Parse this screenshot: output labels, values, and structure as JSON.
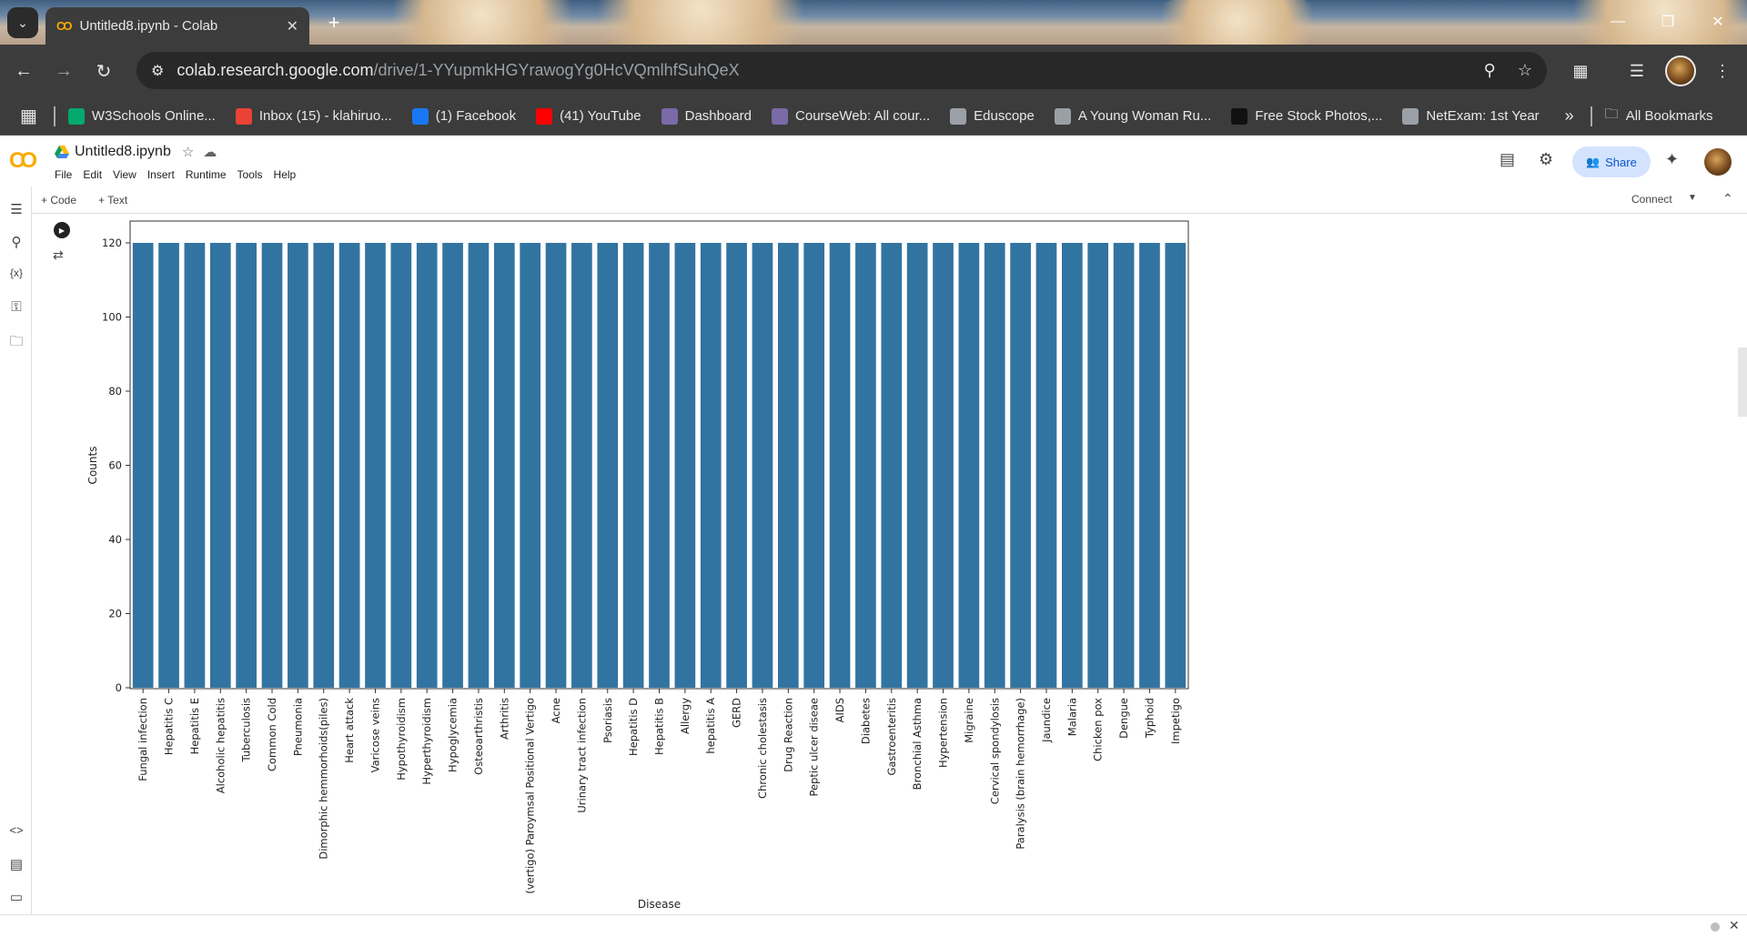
{
  "browser": {
    "tab_title": "Untitled8.ipynb - Colab",
    "url_host": "colab.research.google.com",
    "url_path": "/drive/1-YYupmkHGYrawogYg0HcVQmlhfSuhQeX",
    "bookmarks": [
      {
        "label": "W3Schools Online...",
        "icon": "w3schools-icon",
        "color": "#04aa6d"
      },
      {
        "label": "Inbox (15) - klahiruo...",
        "icon": "gmail-icon",
        "color": "#ea4335"
      },
      {
        "label": "(1) Facebook",
        "icon": "facebook-icon",
        "color": "#1877f2"
      },
      {
        "label": "(41) YouTube",
        "icon": "youtube-icon",
        "color": "#ff0000"
      },
      {
        "label": "Dashboard",
        "icon": "university-icon",
        "color": "#7b6aa8"
      },
      {
        "label": "CourseWeb: All cour...",
        "icon": "university-icon",
        "color": "#7b6aa8"
      },
      {
        "label": "Eduscope",
        "icon": "globe-icon",
        "color": "#9aa0a6"
      },
      {
        "label": "A Young Woman Ru...",
        "icon": "globe-icon",
        "color": "#9aa0a6"
      },
      {
        "label": "Free Stock Photos,...",
        "icon": "pexels-icon",
        "color": "#111111"
      },
      {
        "label": "NetExam: 1st Year",
        "icon": "globe-icon",
        "color": "#9aa0a6"
      }
    ],
    "all_bookmarks": "All Bookmarks"
  },
  "colab": {
    "notebook_title": "Untitled8.ipynb",
    "menu": [
      "File",
      "Edit",
      "View",
      "Insert",
      "Runtime",
      "Tools",
      "Help"
    ],
    "share_label": "Share",
    "add_code": "+ Code",
    "add_text": "+ Text",
    "connect_label": "Connect"
  },
  "chart_data": {
    "type": "bar",
    "xlabel": "Disease",
    "ylabel": "Counts",
    "ylim": [
      0,
      120
    ],
    "yticks": [
      0,
      20,
      40,
      60,
      80,
      100,
      120
    ],
    "bar_color": "#3274a1",
    "categories": [
      "Fungal infection",
      "Hepatitis C",
      "Hepatitis E",
      "Alcoholic hepatitis",
      "Tuberculosis",
      "Common Cold",
      "Pneumonia",
      "Dimorphic hemmorhoids(piles)",
      "Heart attack",
      "Varicose veins",
      "Hypothyroidism",
      "Hyperthyroidism",
      "Hypoglycemia",
      "Osteoarthristis",
      "Arthritis",
      "(vertigo) Paroymsal  Positional Vertigo",
      "Acne",
      "Urinary tract infection",
      "Psoriasis",
      "Hepatitis D",
      "Hepatitis B",
      "Allergy",
      "hepatitis A",
      "GERD",
      "Chronic cholestasis",
      "Drug Reaction",
      "Peptic ulcer diseae",
      "AIDS",
      "Diabetes",
      "Gastroenteritis",
      "Bronchial Asthma",
      "Hypertension",
      "Migraine",
      "Cervical spondylosis",
      "Paralysis (brain hemorrhage)",
      "Jaundice",
      "Malaria",
      "Chicken pox",
      "Dengue",
      "Typhoid",
      "Impetigo"
    ],
    "values": [
      120,
      120,
      120,
      120,
      120,
      120,
      120,
      120,
      120,
      120,
      120,
      120,
      120,
      120,
      120,
      120,
      120,
      120,
      120,
      120,
      120,
      120,
      120,
      120,
      120,
      120,
      120,
      120,
      120,
      120,
      120,
      120,
      120,
      120,
      120,
      120,
      120,
      120,
      120,
      120,
      120
    ]
  }
}
